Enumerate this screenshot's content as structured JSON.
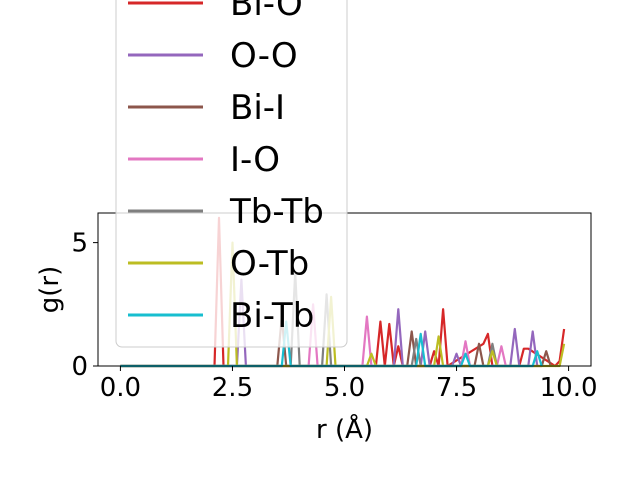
{
  "chart_data": {
    "type": "line",
    "title": "",
    "xlabel": "r (Å)",
    "ylabel": "g(r)",
    "xlim": [
      -0.5,
      10.5
    ],
    "ylim": [
      0,
      6.2
    ],
    "xticks": [
      0.0,
      2.5,
      5.0,
      7.5,
      10.0
    ],
    "xtick_labels": [
      "0.0",
      "2.5",
      "5.0",
      "7.5",
      "10.0"
    ],
    "yticks": [
      0,
      5
    ],
    "ytick_labels": [
      "0",
      "5"
    ],
    "grid": false,
    "legend_position": "upper-left, overlapping the plot and extending above it",
    "series": [
      {
        "name": "Bi-O",
        "color": "#d62728",
        "x": [
          0.0,
          2.1,
          2.2,
          2.3,
          5.7,
          5.8,
          5.9,
          6.0,
          6.1,
          6.2,
          6.3,
          6.9,
          7.0,
          7.1,
          7.2,
          7.3,
          8.1,
          8.2,
          8.3,
          8.9,
          9.0,
          9.1,
          9.7,
          9.8,
          9.9
        ],
        "y": [
          0,
          0,
          6.0,
          0,
          0,
          1.8,
          0,
          1.7,
          0,
          0.8,
          0,
          0,
          0.6,
          0,
          2.3,
          0,
          0.9,
          1.3,
          0,
          0,
          0.7,
          0.7,
          0,
          0.2,
          1.5
        ]
      },
      {
        "name": "O-O",
        "color": "#9467bd",
        "x": [
          0.0,
          2.6,
          2.7,
          2.8,
          6.0,
          6.1,
          6.2,
          6.3,
          6.7,
          6.8,
          6.9,
          7.4,
          7.5,
          7.6,
          8.7,
          8.8,
          8.9,
          9.1,
          9.2,
          9.3
        ],
        "y": [
          0,
          0,
          3.5,
          0,
          0,
          0,
          2.3,
          0,
          0,
          1.4,
          0,
          0,
          0.5,
          0,
          0,
          1.5,
          0,
          0,
          1.4,
          0
        ]
      },
      {
        "name": "Bi-I",
        "color": "#8c564b",
        "x": [
          0.0,
          3.5,
          3.6,
          3.7,
          6.4,
          6.5,
          6.6,
          7.9,
          8.0,
          8.1,
          9.4,
          9.5,
          9.6
        ],
        "y": [
          0,
          0,
          2.0,
          0,
          0,
          1.4,
          0,
          0,
          0.9,
          0,
          0,
          0.6,
          0
        ]
      },
      {
        "name": "I-O",
        "color": "#e377c2",
        "x": [
          0.0,
          4.2,
          4.3,
          4.4,
          5.4,
          5.5,
          5.6,
          7.6,
          7.7,
          7.8,
          8.4,
          8.5,
          8.6
        ],
        "y": [
          0,
          0,
          2.5,
          0,
          0,
          2.0,
          0,
          0,
          1.0,
          0,
          0,
          0.8,
          0
        ]
      },
      {
        "name": "Tb-Tb",
        "color": "#7f7f7f",
        "x": [
          0.0,
          3.8,
          3.9,
          4.0,
          4.5,
          4.6,
          4.7,
          6.5,
          6.6,
          6.7,
          8.2,
          8.3,
          8.4
        ],
        "y": [
          0,
          0,
          3.8,
          0,
          0,
          2.9,
          0,
          0,
          1.1,
          0,
          0,
          0.9,
          0
        ]
      },
      {
        "name": "O-Tb",
        "color": "#bcbd22",
        "x": [
          0.0,
          2.4,
          2.5,
          2.6,
          4.6,
          4.7,
          4.8,
          5.5,
          5.6,
          5.7,
          7.0,
          7.1,
          7.2,
          8.2,
          8.3,
          8.4,
          9.8,
          9.9
        ],
        "y": [
          0,
          0,
          5.0,
          0,
          0,
          2.8,
          0,
          0,
          0.5,
          0,
          0,
          1.2,
          0,
          0,
          0.6,
          0,
          0,
          0.9
        ]
      },
      {
        "name": "Bi-Tb",
        "color": "#17becf",
        "x": [
          0.0,
          3.6,
          3.7,
          3.8,
          6.6,
          6.7,
          6.8,
          7.6,
          7.7,
          7.8,
          9.2,
          9.3,
          9.4
        ],
        "y": [
          0,
          0,
          1.8,
          0,
          0,
          1.3,
          0,
          0,
          0.5,
          0,
          0,
          0.6,
          0
        ]
      }
    ]
  }
}
